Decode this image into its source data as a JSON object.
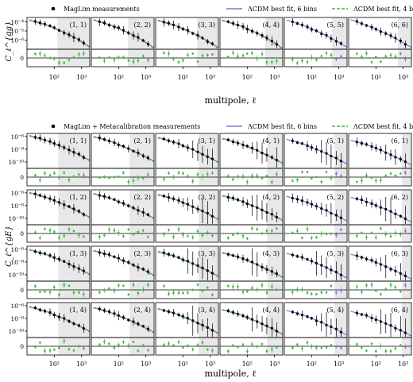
{
  "figure": {
    "top": {
      "ylabel": "C_ℓ^{gg}",
      "xlabel": "multipole, ℓ",
      "legend": [
        "MagLim measurements",
        "ΛCDM best fit, 6 bins",
        "ΛCDM best fit, 4 bins"
      ],
      "ytick_labels": [
        "10⁻⁴",
        "10⁻⁵",
        "10⁻⁶"
      ],
      "xtick_labels": [
        "10²",
        "10³"
      ],
      "resid_tick_label": "0",
      "panel_labels": [
        "(1, 1)",
        "(2, 2)",
        "(3, 3)",
        "(4, 4)",
        "(5, 5)",
        "(6, 6)"
      ]
    },
    "bottom": {
      "ylabel": "C_ℓ^{gE}",
      "xlabel": "multipole, ℓ",
      "legend": [
        "MagLim + Metacalibration measurements",
        "ΛCDM best fit, 6 bins",
        "ΛCDM best fit, 4 bins"
      ],
      "ytick_labels": [
        "10⁻⁶",
        "10⁻⁸",
        "10⁻¹⁰"
      ],
      "xtick_labels": [
        "10²",
        "10³"
      ],
      "resid_tick_label": "0",
      "panel_labels": [
        [
          "(1, 1)",
          "(2, 1)",
          "(3, 1)",
          "(4, 1)",
          "(5, 1)",
          "(6, 1)"
        ],
        [
          "(1, 2)",
          "(2, 2)",
          "(3, 2)",
          "(4, 2)",
          "(5, 2)",
          "(6, 2)"
        ],
        [
          "(1, 3)",
          "(2, 3)",
          "(3, 3)",
          "(4, 3)",
          "(5, 3)",
          "(6, 3)"
        ],
        [
          "(1, 4)",
          "(2, 4)",
          "(3, 4)",
          "(4, 4)",
          "(5, 4)",
          "(6, 4)"
        ]
      ]
    },
    "colors": {
      "data": "#000000",
      "fit6": "#8a6fd6",
      "fit4": "#3dbb3d",
      "shade": "#e8e8e8"
    }
  },
  "chart_data": [
    {
      "type": "scatter",
      "x": [
        20,
        30,
        45,
        70,
        100,
        150,
        230,
        350,
        520,
        800,
        1200
      ],
      "xlim": [
        10,
        2000
      ],
      "ylim": [
        1e-07,
        0.0003
      ],
      "xscale": "log",
      "yscale": "log",
      "grid": false,
      "legend_position": "top",
      "series": [
        {
          "name": "MagLim measurements",
          "values_by_panel": [
            [
              0.00011,
              8e-05,
              5.5e-05,
              3.5e-05,
              2.2e-05,
              1.3e-05,
              7e-06,
              4e-06,
              2.2e-06,
              1.1e-06,
              5e-07
            ],
            [
              0.00011,
              7.5e-05,
              5e-05,
              3.2e-05,
              2e-05,
              1.2e-05,
              6.5e-06,
              3.5e-06,
              1.8e-06,
              9e-07,
              4e-07
            ],
            [
              0.0001,
              7e-05,
              4.8e-05,
              3e-05,
              1.9e-05,
              1.1e-05,
              6e-06,
              3.3e-06,
              1.7e-06,
              8e-07,
              3.8e-07
            ],
            [
              0.0001,
              7e-05,
              4.6e-05,
              2.9e-05,
              1.8e-05,
              1.05e-05,
              5.8e-06,
              3.2e-06,
              1.6e-06,
              8e-07,
              3.5e-07
            ],
            [
              0.0001,
              6.8e-05,
              4.4e-05,
              2.8e-05,
              1.7e-05,
              1e-05,
              5.5e-06,
              3e-06,
              1.6e-06,
              8e-07,
              4e-07
            ],
            [
              0.0001,
              6.5e-05,
              4.2e-05,
              2.6e-05,
              1.6e-05,
              9.5e-06,
              5.2e-06,
              2.9e-06,
              1.5e-06,
              7.5e-07,
              3.8e-07
            ]
          ]
        },
        {
          "name": "ΛCDM best fit, 6 bins"
        },
        {
          "name": "ΛCDM best fit, 4 bins"
        }
      ]
    },
    {
      "type": "scatter",
      "x": [
        20,
        30,
        45,
        70,
        100,
        150,
        230,
        350,
        520,
        800,
        1200
      ],
      "xlim": [
        10,
        2000
      ],
      "ylim": [
        1e-11,
        3e-06
      ],
      "xscale": "log",
      "yscale": "log",
      "grid": false,
      "legend_position": "top",
      "series": [
        {
          "name": "MagLim + Metacalibration measurements",
          "values": [
            8e-07,
            5e-07,
            3e-07,
            1.5e-07,
            8e-08,
            4e-08,
            1.8e-08,
            8e-09,
            3.5e-09,
            1.5e-09,
            6e-10
          ]
        },
        {
          "name": "ΛCDM best fit, 6 bins"
        },
        {
          "name": "ΛCDM best fit, 4 bins"
        }
      ]
    }
  ]
}
